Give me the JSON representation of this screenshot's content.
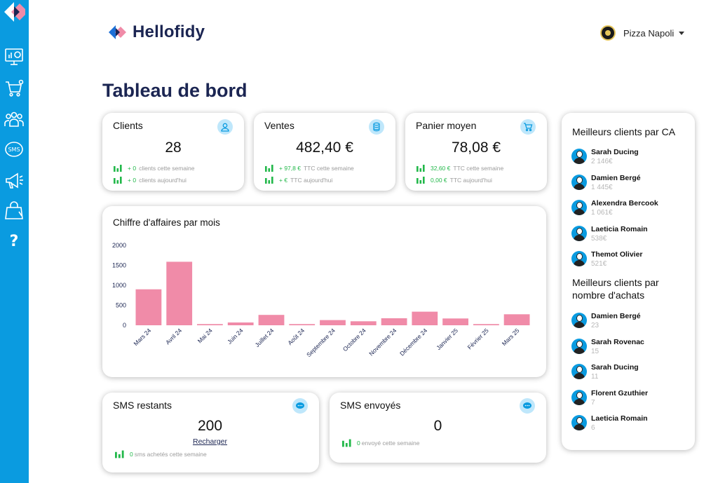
{
  "brand": {
    "name": "Hellofidy"
  },
  "user": {
    "name": "Pizza Napoli"
  },
  "page_title": "Tableau de bord",
  "sidebar": {
    "items": [
      {
        "icon": "dashboard-icon"
      },
      {
        "icon": "cart-icon"
      },
      {
        "icon": "customers-icon"
      },
      {
        "icon": "sms-icon"
      },
      {
        "icon": "megaphone-icon"
      },
      {
        "icon": "shopping-bag-icon"
      },
      {
        "icon": "help-icon"
      }
    ]
  },
  "kpis": {
    "clients": {
      "title": "Clients",
      "value": "28",
      "icon": "user-icon",
      "week_value": "+ 0",
      "week_label": "clients cette semaine",
      "today_value": "+ 0",
      "today_label": "clients aujourd'hui"
    },
    "ventes": {
      "title": "Ventes",
      "value": "482,40 €",
      "icon": "coins-icon",
      "week_value": "+ 97,8 €",
      "week_label": "TTC cette semaine",
      "today_value": "+  €",
      "today_label": "TTC aujourd'hui"
    },
    "panier": {
      "title": "Panier moyen",
      "value": "78,08 €",
      "icon": "cart-icon",
      "week_value": "32,60 €",
      "week_label": "TTC cette semaine",
      "today_value": "0,00 €",
      "today_label": "TTC aujourd'hui"
    }
  },
  "revenue_chart": {
    "title": "Chiffre d'affaires par mois"
  },
  "chart_data": {
    "type": "bar",
    "categories": [
      "Mars 24",
      "Avril 24",
      "Mai 24",
      "Juin 24",
      "Juillet 24",
      "Août 24",
      "Septembre 24",
      "Octobre 24",
      "Novembre 24",
      "Décembre 24",
      "Janvier 25",
      "Février 25",
      "Mars 25"
    ],
    "values": [
      900,
      1590,
      30,
      70,
      260,
      30,
      130,
      100,
      175,
      340,
      170,
      30,
      275
    ],
    "yticks": [
      "2000",
      "1500",
      "1000",
      "500",
      "0"
    ],
    "ylim": [
      0,
      2000
    ],
    "bar_color": "#f08ba8",
    "grid": false
  },
  "sms_restants": {
    "title": "SMS restants",
    "value": "200",
    "link": "Recharger",
    "stat_value": "0",
    "stat_label": "sms achetés cette semaine"
  },
  "sms_envoyes": {
    "title": "SMS envoyés",
    "value": "0",
    "stat_value": "0",
    "stat_label": "envoyé cette semaine"
  },
  "top_ca": {
    "title": "Meilleurs clients par CA",
    "items": [
      {
        "name": "Sarah Ducing",
        "value": "2 146€"
      },
      {
        "name": "Damien Bergé",
        "value": "1 445€"
      },
      {
        "name": "Alexendra Bercook",
        "value": "1 061€"
      },
      {
        "name": "Laeticia Romain",
        "value": "538€"
      },
      {
        "name": "Themot Olivier",
        "value": "521€"
      }
    ]
  },
  "top_achats": {
    "title_line1": "Meilleurs clients par",
    "title_line2": "nombre d'achats",
    "items": [
      {
        "name": "Damien Bergé",
        "value": "23"
      },
      {
        "name": "Sarah Rovenac",
        "value": "15"
      },
      {
        "name": "Sarah Ducing",
        "value": "11"
      },
      {
        "name": "Florent Gzuthier",
        "value": "7"
      },
      {
        "name": "Laeticia Romain",
        "value": "6"
      }
    ]
  },
  "colors": {
    "sidebar": "#0a9be0",
    "title": "#1b2552",
    "green": "#22b84a",
    "badge": "#bfe7fb",
    "bar": "#f08ba8"
  }
}
